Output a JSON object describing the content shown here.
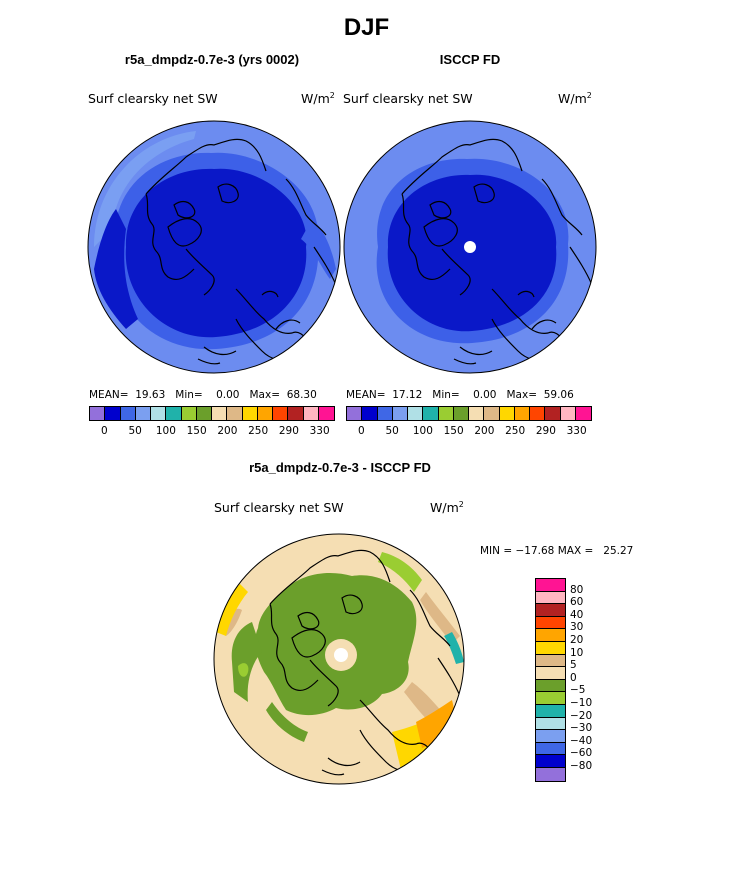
{
  "season": "DJF",
  "variable": "Surf clearsky net SW",
  "units_base": "W/m",
  "units_exp": "2",
  "panel_left": {
    "title": "r5a_dmpdz-0.7e-3 (yrs 0002)",
    "mean_label": "MEAN=",
    "mean": "19.63",
    "min_label": "Min=",
    "min": "0.00",
    "max_label": "Max=",
    "max": "68.30"
  },
  "panel_right": {
    "title": "ISCCP FD",
    "mean_label": "MEAN=",
    "mean": "17.12",
    "min_label": "Min=",
    "min": "0.00",
    "max_label": "Max=",
    "max": "59.06"
  },
  "abs_colorbar": {
    "colors": [
      "#9370db",
      "#0000cd",
      "#3f67e6",
      "#7b9ff0",
      "#b0e0e6",
      "#20b2aa",
      "#9acd32",
      "#6b9f2b",
      "#f5deb3",
      "#deb887",
      "#ffd700",
      "#ffa500",
      "#ff4500",
      "#b22222",
      "#ffb6c1",
      "#ff1493"
    ],
    "ticks": [
      "0",
      "50",
      "100",
      "150",
      "200",
      "250",
      "290",
      "330"
    ]
  },
  "diff_panel": {
    "title": "r5a_dmpdz-0.7e-3 - ISCCP FD",
    "min_label": "MIN =",
    "min": "−17.68",
    "max_label": "MAX =",
    "max": "25.27"
  },
  "diff_colorbar": {
    "colors": [
      "#ff1493",
      "#ffb6c1",
      "#b22222",
      "#ff4500",
      "#ffa500",
      "#ffd700",
      "#deb887",
      "#f5deb3",
      "#6b9f2b",
      "#9acd32",
      "#20b2aa",
      "#b0e0e6",
      "#7b9ff0",
      "#3f67e6",
      "#0000cd",
      "#9370db"
    ],
    "ticks": [
      "80",
      "60",
      "40",
      "30",
      "20",
      "10",
      "5",
      "0",
      "−5",
      "−10",
      "−20",
      "−30",
      "−40",
      "−60",
      "−80"
    ]
  }
}
